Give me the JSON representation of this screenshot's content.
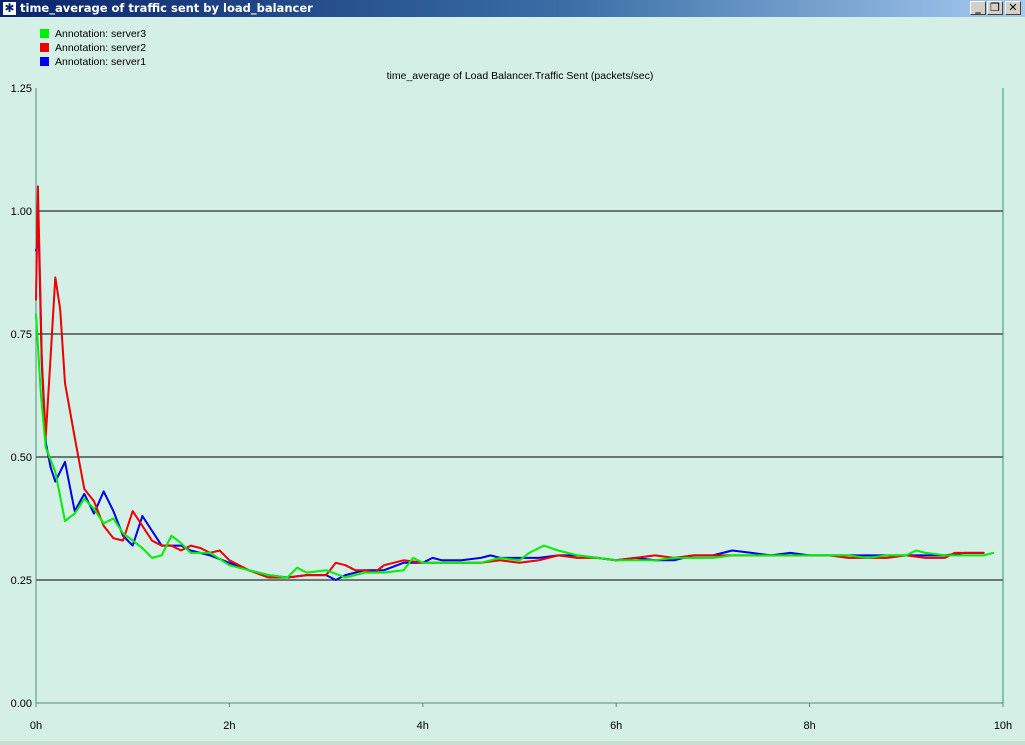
{
  "window": {
    "title": "time_average of traffic sent by load_balancer",
    "icon": "star-icon",
    "controls": [
      "minimize-icon",
      "restore-icon",
      "close-icon"
    ]
  },
  "colors": {
    "background": "#d4efe5",
    "server3": "#00ee00",
    "server2": "#ee0000",
    "server1": "#0000ee"
  },
  "legend": [
    {
      "label": "Annotation: server3",
      "color": "#00ee00"
    },
    {
      "label": "Annotation: server2",
      "color": "#ee0000"
    },
    {
      "label": "Annotation: server1",
      "color": "#0000ee"
    }
  ],
  "chart_data": {
    "type": "line",
    "title": "time_average of Load Balancer.Traffic Sent (packets/sec)",
    "xlabel": "",
    "ylabel": "",
    "xlim": [
      0,
      10
    ],
    "ylim": [
      0,
      1.25
    ],
    "x_ticks": [
      {
        "value": 0,
        "label": "0h"
      },
      {
        "value": 2,
        "label": "2h"
      },
      {
        "value": 4,
        "label": "4h"
      },
      {
        "value": 6,
        "label": "6h"
      },
      {
        "value": 8,
        "label": "8h"
      },
      {
        "value": 10,
        "label": "10h"
      }
    ],
    "y_ticks": [
      {
        "value": 0,
        "label": "0.00"
      },
      {
        "value": 0.25,
        "label": "0.25"
      },
      {
        "value": 0.5,
        "label": "0.50"
      },
      {
        "value": 0.75,
        "label": "0.75"
      },
      {
        "value": 1.0,
        "label": "1.00"
      },
      {
        "value": 1.25,
        "label": "1.25"
      }
    ],
    "gridlines_y": [
      0.25,
      0.5,
      0.75,
      1.0
    ],
    "legend_position": "top-left",
    "series": [
      {
        "name": "Annotation: server3",
        "color": "#00ee00",
        "points": [
          [
            0,
            0.79
          ],
          [
            0.05,
            0.63
          ],
          [
            0.1,
            0.52
          ],
          [
            0.2,
            0.47
          ],
          [
            0.3,
            0.37
          ],
          [
            0.4,
            0.385
          ],
          [
            0.5,
            0.415
          ],
          [
            0.6,
            0.395
          ],
          [
            0.7,
            0.365
          ],
          [
            0.8,
            0.375
          ],
          [
            0.9,
            0.345
          ],
          [
            1.0,
            0.33
          ],
          [
            1.1,
            0.315
          ],
          [
            1.2,
            0.295
          ],
          [
            1.3,
            0.3
          ],
          [
            1.4,
            0.34
          ],
          [
            1.5,
            0.325
          ],
          [
            1.6,
            0.305
          ],
          [
            1.8,
            0.305
          ],
          [
            2.0,
            0.28
          ],
          [
            2.2,
            0.27
          ],
          [
            2.4,
            0.26
          ],
          [
            2.6,
            0.255
          ],
          [
            2.7,
            0.275
          ],
          [
            2.8,
            0.265
          ],
          [
            3.0,
            0.27
          ],
          [
            3.2,
            0.255
          ],
          [
            3.4,
            0.265
          ],
          [
            3.6,
            0.265
          ],
          [
            3.8,
            0.27
          ],
          [
            3.9,
            0.295
          ],
          [
            4.0,
            0.285
          ],
          [
            4.2,
            0.285
          ],
          [
            4.4,
            0.285
          ],
          [
            4.6,
            0.285
          ],
          [
            4.8,
            0.295
          ],
          [
            5.0,
            0.29
          ],
          [
            5.1,
            0.305
          ],
          [
            5.25,
            0.32
          ],
          [
            5.4,
            0.31
          ],
          [
            5.6,
            0.3
          ],
          [
            5.8,
            0.295
          ],
          [
            6.0,
            0.29
          ],
          [
            6.2,
            0.29
          ],
          [
            6.4,
            0.29
          ],
          [
            6.6,
            0.295
          ],
          [
            6.8,
            0.295
          ],
          [
            7.0,
            0.295
          ],
          [
            7.2,
            0.3
          ],
          [
            7.4,
            0.3
          ],
          [
            7.6,
            0.3
          ],
          [
            7.8,
            0.3
          ],
          [
            8.0,
            0.3
          ],
          [
            8.2,
            0.3
          ],
          [
            8.4,
            0.3
          ],
          [
            8.6,
            0.295
          ],
          [
            8.8,
            0.3
          ],
          [
            9.0,
            0.3
          ],
          [
            9.1,
            0.31
          ],
          [
            9.2,
            0.305
          ],
          [
            9.4,
            0.3
          ],
          [
            9.6,
            0.3
          ],
          [
            9.8,
            0.3
          ],
          [
            9.9,
            0.305
          ]
        ]
      },
      {
        "name": "Annotation: server2",
        "color": "#ee0000",
        "points": [
          [
            0,
            0.82
          ],
          [
            0.02,
            1.05
          ],
          [
            0.06,
            0.7
          ],
          [
            0.1,
            0.54
          ],
          [
            0.15,
            0.7
          ],
          [
            0.2,
            0.865
          ],
          [
            0.25,
            0.8
          ],
          [
            0.3,
            0.65
          ],
          [
            0.4,
            0.54
          ],
          [
            0.5,
            0.435
          ],
          [
            0.6,
            0.41
          ],
          [
            0.7,
            0.36
          ],
          [
            0.8,
            0.335
          ],
          [
            0.9,
            0.33
          ],
          [
            1.0,
            0.39
          ],
          [
            1.1,
            0.36
          ],
          [
            1.2,
            0.33
          ],
          [
            1.3,
            0.32
          ],
          [
            1.4,
            0.32
          ],
          [
            1.5,
            0.31
          ],
          [
            1.6,
            0.32
          ],
          [
            1.7,
            0.315
          ],
          [
            1.8,
            0.305
          ],
          [
            1.9,
            0.31
          ],
          [
            2.0,
            0.29
          ],
          [
            2.2,
            0.27
          ],
          [
            2.4,
            0.255
          ],
          [
            2.6,
            0.255
          ],
          [
            2.8,
            0.26
          ],
          [
            3.0,
            0.26
          ],
          [
            3.1,
            0.285
          ],
          [
            3.2,
            0.28
          ],
          [
            3.3,
            0.27
          ],
          [
            3.4,
            0.27
          ],
          [
            3.5,
            0.265
          ],
          [
            3.6,
            0.28
          ],
          [
            3.8,
            0.29
          ],
          [
            4.0,
            0.285
          ],
          [
            4.2,
            0.285
          ],
          [
            4.4,
            0.285
          ],
          [
            4.6,
            0.285
          ],
          [
            4.8,
            0.29
          ],
          [
            5.0,
            0.285
          ],
          [
            5.2,
            0.29
          ],
          [
            5.4,
            0.3
          ],
          [
            5.6,
            0.295
          ],
          [
            5.8,
            0.295
          ],
          [
            6.0,
            0.29
          ],
          [
            6.2,
            0.295
          ],
          [
            6.4,
            0.3
          ],
          [
            6.6,
            0.295
          ],
          [
            6.8,
            0.3
          ],
          [
            7.0,
            0.3
          ],
          [
            7.2,
            0.3
          ],
          [
            7.4,
            0.3
          ],
          [
            7.6,
            0.3
          ],
          [
            7.8,
            0.3
          ],
          [
            8.0,
            0.3
          ],
          [
            8.2,
            0.3
          ],
          [
            8.4,
            0.295
          ],
          [
            8.6,
            0.295
          ],
          [
            8.8,
            0.295
          ],
          [
            9.0,
            0.3
          ],
          [
            9.2,
            0.295
          ],
          [
            9.4,
            0.295
          ],
          [
            9.5,
            0.305
          ],
          [
            9.6,
            0.305
          ],
          [
            9.8,
            0.305
          ]
        ]
      },
      {
        "name": "Annotation: server1",
        "color": "#0000ee",
        "points": [
          [
            0,
            0.92
          ],
          [
            0.03,
            0.94
          ],
          [
            0.06,
            0.69
          ],
          [
            0.1,
            0.53
          ],
          [
            0.15,
            0.48
          ],
          [
            0.2,
            0.45
          ],
          [
            0.3,
            0.49
          ],
          [
            0.4,
            0.39
          ],
          [
            0.5,
            0.425
          ],
          [
            0.6,
            0.385
          ],
          [
            0.7,
            0.43
          ],
          [
            0.8,
            0.39
          ],
          [
            0.9,
            0.34
          ],
          [
            1.0,
            0.32
          ],
          [
            1.1,
            0.38
          ],
          [
            1.2,
            0.35
          ],
          [
            1.3,
            0.32
          ],
          [
            1.4,
            0.32
          ],
          [
            1.5,
            0.32
          ],
          [
            1.6,
            0.31
          ],
          [
            1.8,
            0.3
          ],
          [
            2.0,
            0.285
          ],
          [
            2.2,
            0.27
          ],
          [
            2.4,
            0.26
          ],
          [
            2.6,
            0.255
          ],
          [
            2.8,
            0.26
          ],
          [
            3.0,
            0.26
          ],
          [
            3.1,
            0.25
          ],
          [
            3.2,
            0.26
          ],
          [
            3.4,
            0.27
          ],
          [
            3.6,
            0.27
          ],
          [
            3.8,
            0.285
          ],
          [
            4.0,
            0.285
          ],
          [
            4.1,
            0.295
          ],
          [
            4.2,
            0.29
          ],
          [
            4.4,
            0.29
          ],
          [
            4.6,
            0.295
          ],
          [
            4.7,
            0.3
          ],
          [
            4.8,
            0.295
          ],
          [
            5.0,
            0.295
          ],
          [
            5.2,
            0.295
          ],
          [
            5.4,
            0.3
          ],
          [
            5.6,
            0.3
          ],
          [
            5.8,
            0.295
          ],
          [
            6.0,
            0.29
          ],
          [
            6.2,
            0.295
          ],
          [
            6.4,
            0.29
          ],
          [
            6.6,
            0.29
          ],
          [
            6.8,
            0.3
          ],
          [
            7.0,
            0.3
          ],
          [
            7.2,
            0.31
          ],
          [
            7.4,
            0.305
          ],
          [
            7.6,
            0.3
          ],
          [
            7.8,
            0.305
          ],
          [
            8.0,
            0.3
          ],
          [
            8.2,
            0.3
          ],
          [
            8.4,
            0.3
          ],
          [
            8.6,
            0.3
          ],
          [
            8.8,
            0.3
          ],
          [
            9.0,
            0.3
          ],
          [
            9.2,
            0.3
          ],
          [
            9.4,
            0.3
          ],
          [
            9.6,
            0.305
          ],
          [
            9.8,
            0.305
          ]
        ]
      }
    ]
  }
}
